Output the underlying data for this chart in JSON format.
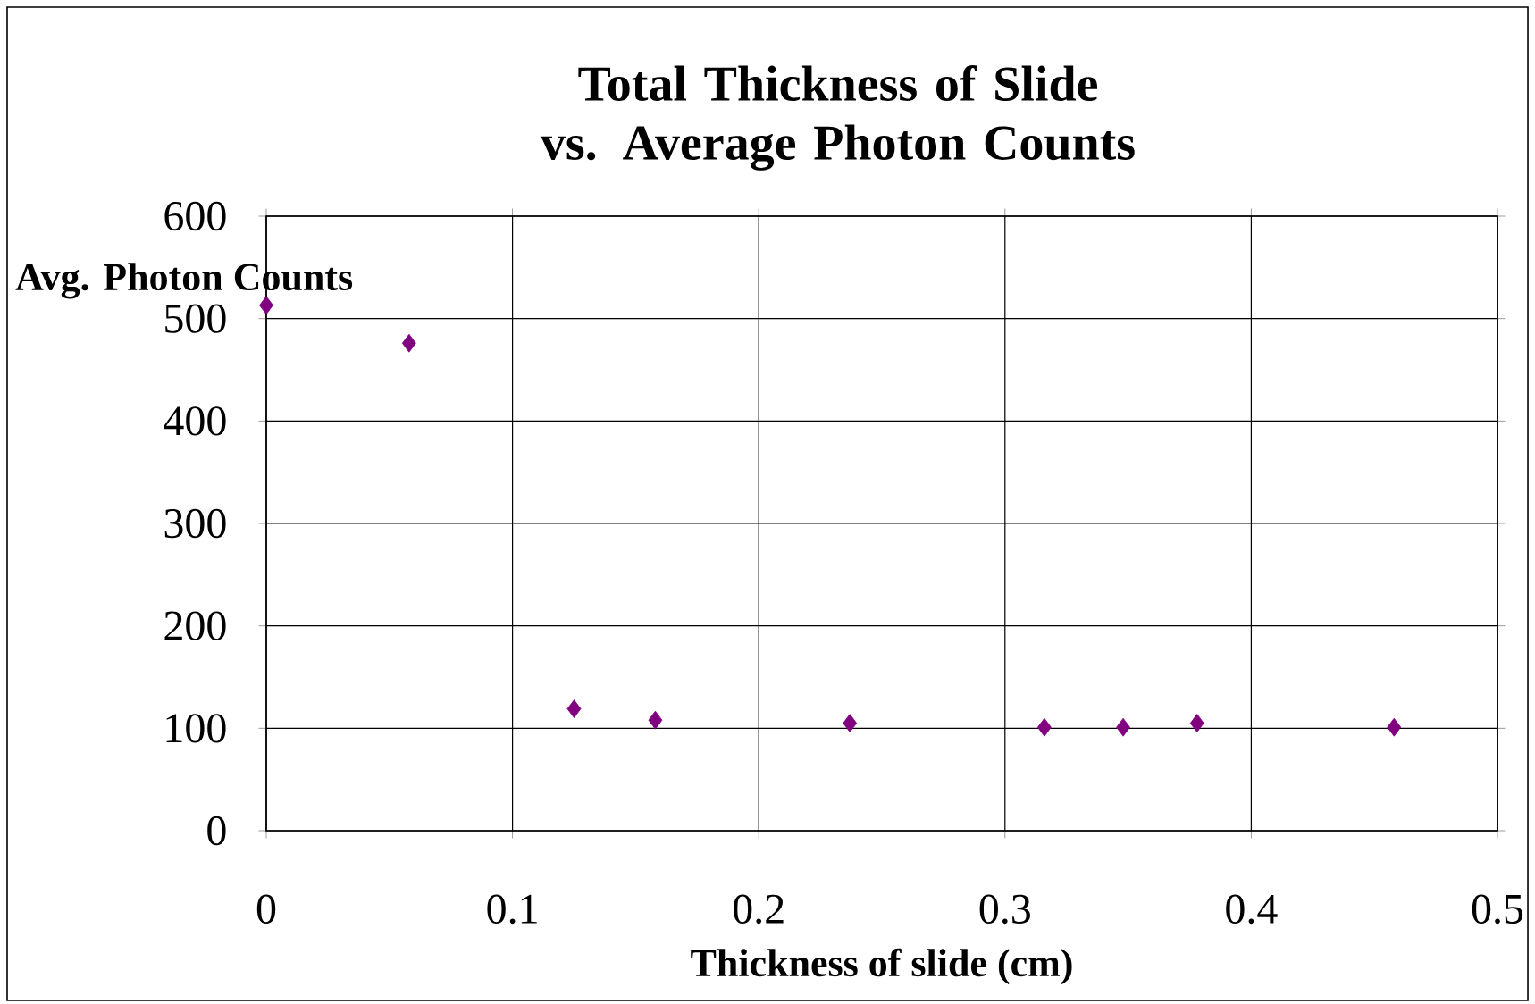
{
  "chart_data": {
    "type": "scatter",
    "title": "Total Thickness of Slide vs. Average Photon Counts",
    "xlabel": "Thickness of slide (cm)",
    "ylabel": "Avg. Photon Counts",
    "x": [
      0,
      0.058,
      0.125,
      0.158,
      0.237,
      0.316,
      0.348,
      0.378,
      0.458
    ],
    "values": [
      513,
      476,
      119,
      108,
      105,
      101,
      101,
      105,
      101
    ],
    "color": "#800080",
    "marker": "diamond",
    "xlim": [
      0,
      0.5
    ],
    "xticks": [
      0,
      0.1,
      0.2,
      0.3,
      0.4,
      0.5
    ],
    "ylim": [
      0,
      600
    ],
    "yticks": [
      0,
      100,
      200,
      300,
      400,
      500,
      600
    ],
    "grid": true
  }
}
